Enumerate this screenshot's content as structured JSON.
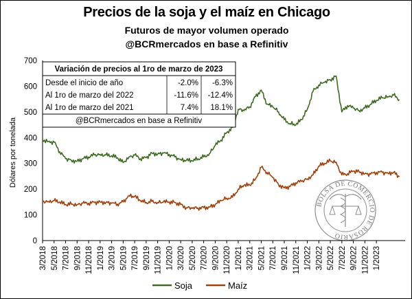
{
  "header": {
    "title": "Precios de la soja y el maíz en Chicago",
    "subtitle": "Futuros de mayor volumen operado",
    "source": "@BCRmercados en base a Refinitiv"
  },
  "chart_data": {
    "type": "line",
    "title": "Precios de la soja y el maíz en Chicago",
    "ylabel": "Dólares por tonelada",
    "xlabel": "",
    "ylim": [
      0,
      700
    ],
    "yticks": [
      0,
      100,
      200,
      300,
      400,
      500,
      600,
      700
    ],
    "grid": false,
    "legend_position": "bottom-center",
    "x_start": "3/2018",
    "x_end": "6/2023",
    "xticks": [
      "3/2018",
      "5/2018",
      "7/2018",
      "9/2018",
      "11/2018",
      "1/2019",
      "3/2019",
      "5/2019",
      "7/2019",
      "9/2019",
      "11/2019",
      "1/2020",
      "3/2020",
      "5/2020",
      "7/2020",
      "9/2020",
      "11/2020",
      "1/2021",
      "3/2021",
      "5/2021",
      "7/2021",
      "9/2021",
      "11/2021",
      "1/2022",
      "3/2022",
      "5/2022",
      "7/2022",
      "9/2022",
      "11/2022",
      "1/2023"
    ],
    "series": [
      {
        "name": "Soja",
        "color": "#3d6b21",
        "points": [
          [
            "3/2018",
            392
          ],
          [
            "4/2018",
            385
          ],
          [
            "5/2018",
            382
          ],
          [
            "6/2018",
            345
          ],
          [
            "7/2018",
            318
          ],
          [
            "8/2018",
            312
          ],
          [
            "9/2018",
            308
          ],
          [
            "10/2018",
            318
          ],
          [
            "11/2018",
            325
          ],
          [
            "12/2018",
            333
          ],
          [
            "1/2019",
            335
          ],
          [
            "2/2019",
            332
          ],
          [
            "3/2019",
            330
          ],
          [
            "4/2019",
            322
          ],
          [
            "5/2019",
            303
          ],
          [
            "6/2019",
            325
          ],
          [
            "7/2019",
            332
          ],
          [
            "8/2019",
            318
          ],
          [
            "9/2019",
            322
          ],
          [
            "10/2019",
            340
          ],
          [
            "11/2019",
            336
          ],
          [
            "12/2019",
            340
          ],
          [
            "1/2020",
            335
          ],
          [
            "2/2020",
            325
          ],
          [
            "3/2020",
            315
          ],
          [
            "4/2020",
            312
          ],
          [
            "5/2020",
            310
          ],
          [
            "6/2020",
            318
          ],
          [
            "7/2020",
            325
          ],
          [
            "8/2020",
            338
          ],
          [
            "9/2020",
            370
          ],
          [
            "10/2020",
            390
          ],
          [
            "11/2020",
            420
          ],
          [
            "12/2020",
            440
          ],
          [
            "1/2021",
            510
          ],
          [
            "2/2021",
            505
          ],
          [
            "3/2021",
            520
          ],
          [
            "4/2021",
            560
          ],
          [
            "5/2021",
            585
          ],
          [
            "6/2021",
            530
          ],
          [
            "7/2021",
            520
          ],
          [
            "8/2021",
            500
          ],
          [
            "9/2021",
            470
          ],
          [
            "10/2021",
            455
          ],
          [
            "11/2021",
            450
          ],
          [
            "12/2021",
            470
          ],
          [
            "1/2022",
            510
          ],
          [
            "2/2022",
            580
          ],
          [
            "3/2022",
            605
          ],
          [
            "4/2022",
            615
          ],
          [
            "5/2022",
            625
          ],
          [
            "6/2022",
            640
          ],
          [
            "7/2022",
            500
          ],
          [
            "8/2022",
            525
          ],
          [
            "9/2022",
            515
          ],
          [
            "10/2022",
            505
          ],
          [
            "11/2022",
            515
          ],
          [
            "12/2022",
            530
          ],
          [
            "1/2023",
            545
          ],
          [
            "2/2023",
            555
          ],
          [
            "3/2023",
            560
          ],
          [
            "4/2023",
            565
          ],
          [
            "5/2023",
            548
          ]
        ]
      },
      {
        "name": "Maíz",
        "color": "#a0400a",
        "points": [
          [
            "3/2018",
            152
          ],
          [
            "4/2018",
            152
          ],
          [
            "5/2018",
            155
          ],
          [
            "6/2018",
            150
          ],
          [
            "7/2018",
            140
          ],
          [
            "8/2018",
            142
          ],
          [
            "9/2018",
            140
          ],
          [
            "10/2018",
            145
          ],
          [
            "11/2018",
            145
          ],
          [
            "12/2018",
            148
          ],
          [
            "1/2019",
            150
          ],
          [
            "2/2019",
            148
          ],
          [
            "3/2019",
            145
          ],
          [
            "4/2019",
            142
          ],
          [
            "5/2019",
            150
          ],
          [
            "6/2019",
            175
          ],
          [
            "7/2019",
            172
          ],
          [
            "8/2019",
            155
          ],
          [
            "9/2019",
            148
          ],
          [
            "10/2019",
            152
          ],
          [
            "11/2019",
            148
          ],
          [
            "12/2019",
            150
          ],
          [
            "1/2020",
            150
          ],
          [
            "2/2020",
            148
          ],
          [
            "3/2020",
            140
          ],
          [
            "4/2020",
            128
          ],
          [
            "5/2020",
            125
          ],
          [
            "6/2020",
            127
          ],
          [
            "7/2020",
            128
          ],
          [
            "8/2020",
            130
          ],
          [
            "9/2020",
            140
          ],
          [
            "10/2020",
            155
          ],
          [
            "11/2020",
            165
          ],
          [
            "12/2020",
            168
          ],
          [
            "1/2021",
            200
          ],
          [
            "2/2021",
            215
          ],
          [
            "3/2021",
            215
          ],
          [
            "4/2021",
            240
          ],
          [
            "5/2021",
            285
          ],
          [
            "6/2021",
            265
          ],
          [
            "7/2021",
            245
          ],
          [
            "8/2021",
            218
          ],
          [
            "9/2021",
            205
          ],
          [
            "10/2021",
            210
          ],
          [
            "11/2021",
            225
          ],
          [
            "12/2021",
            230
          ],
          [
            "1/2022",
            240
          ],
          [
            "2/2022",
            255
          ],
          [
            "3/2022",
            290
          ],
          [
            "4/2022",
            300
          ],
          [
            "5/2022",
            310
          ],
          [
            "6/2022",
            305
          ],
          [
            "7/2022",
            255
          ],
          [
            "8/2022",
            260
          ],
          [
            "9/2022",
            270
          ],
          [
            "10/2022",
            268
          ],
          [
            "11/2022",
            260
          ],
          [
            "12/2022",
            258
          ],
          [
            "1/2023",
            265
          ],
          [
            "2/2023",
            265
          ],
          [
            "3/2023",
            262
          ],
          [
            "4/2023",
            265
          ],
          [
            "5/2023",
            248
          ]
        ]
      }
    ],
    "table": {
      "header": "Variación de precios al 1ro de marzo de 2023",
      "rows": [
        {
          "label": "Desde el inicio de año",
          "soja": "-2.0%",
          "maiz": "-6.3%"
        },
        {
          "label": "Al 1ro de marzo del 2022",
          "soja": "-11.6%",
          "maiz": "-12.4%"
        },
        {
          "label": "Al 1ro de marzo del 2021",
          "soja": "7.4%",
          "maiz": "18.1%"
        }
      ],
      "footer": "@BCRmercados en base a Refinitiv"
    },
    "watermark": "BOLSA DE COMERCIO DE ROSARIO"
  }
}
